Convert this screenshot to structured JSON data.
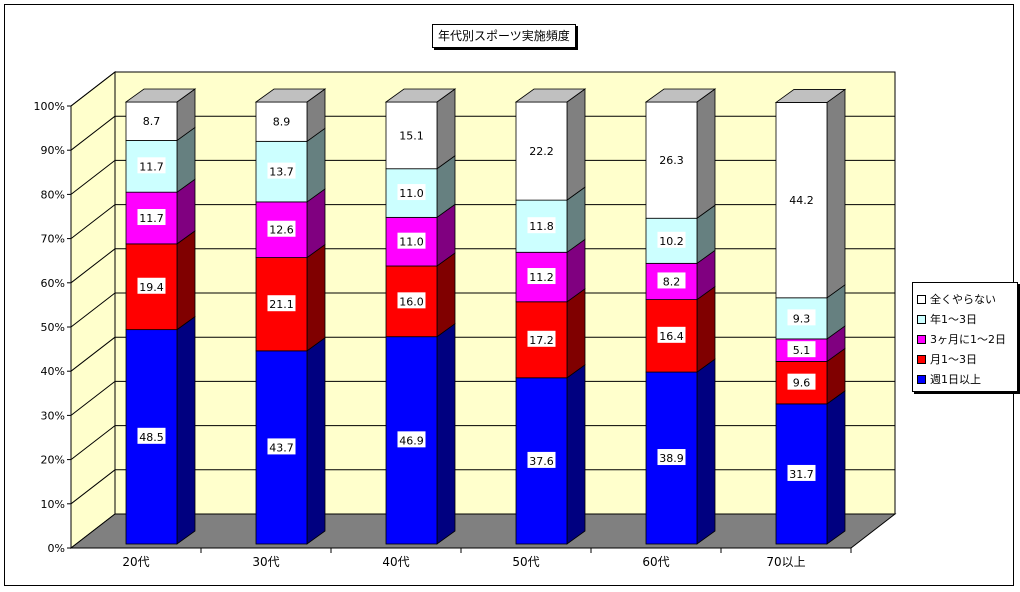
{
  "chart_data": {
    "type": "bar",
    "stacked": true,
    "three_d": true,
    "title": "年代別スポーツ実施頻度",
    "categories": [
      "20代",
      "30代",
      "40代",
      "50代",
      "60代",
      "70以上"
    ],
    "series": [
      {
        "name": "週1日以上",
        "color": "#0000ff",
        "values": [
          48.5,
          43.7,
          46.9,
          37.6,
          38.9,
          31.7
        ]
      },
      {
        "name": "月1～3日",
        "color": "#ff0000",
        "values": [
          19.4,
          21.1,
          16.0,
          17.2,
          16.4,
          9.6
        ]
      },
      {
        "name": "3ヶ月に1～2日",
        "color": "#ff00ff",
        "values": [
          11.7,
          12.6,
          11.0,
          11.2,
          8.2,
          5.1
        ]
      },
      {
        "name": "年1～3日",
        "color": "#ccffff",
        "values": [
          11.7,
          13.7,
          11.0,
          11.8,
          10.2,
          9.3
        ]
      },
      {
        "name": "全くやらない",
        "color": "#ffffff",
        "values": [
          8.7,
          8.9,
          15.1,
          22.2,
          26.3,
          44.2
        ]
      }
    ],
    "y_ticks": [
      "0%",
      "10%",
      "20%",
      "30%",
      "40%",
      "50%",
      "60%",
      "70%",
      "80%",
      "90%",
      "100%"
    ],
    "ylim": [
      0,
      100
    ],
    "grid": true,
    "wall_color": "#ffffcc",
    "floor_color": "#808080",
    "legend_position": "right"
  }
}
